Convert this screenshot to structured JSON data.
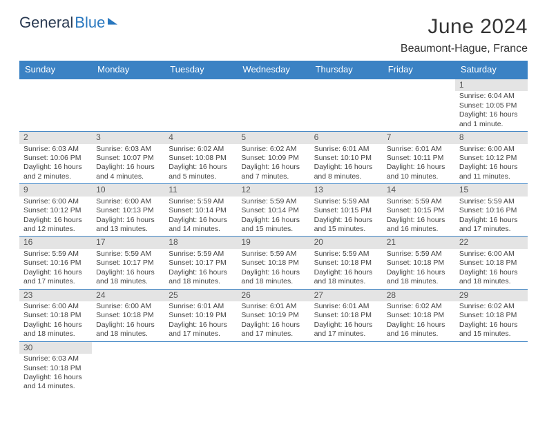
{
  "brand": {
    "general": "General",
    "blue": "Blue"
  },
  "title": "June 2024",
  "location": "Beaumont-Hague, France",
  "colors": {
    "header_bg": "#3b82c4",
    "header_text": "#ffffff",
    "daynum_bg": "#e4e4e4",
    "cell_border": "#3b82c4",
    "body_text": "#444444",
    "title_text": "#333333",
    "logo_general": "#2a3a52",
    "logo_blue": "#2a78bf"
  },
  "weekdays": [
    "Sunday",
    "Monday",
    "Tuesday",
    "Wednesday",
    "Thursday",
    "Friday",
    "Saturday"
  ],
  "weeks": [
    [
      null,
      null,
      null,
      null,
      null,
      null,
      {
        "n": "1",
        "sr": "Sunrise: 6:04 AM",
        "ss": "Sunset: 10:05 PM",
        "dl": "Daylight: 16 hours and 1 minute."
      }
    ],
    [
      {
        "n": "2",
        "sr": "Sunrise: 6:03 AM",
        "ss": "Sunset: 10:06 PM",
        "dl": "Daylight: 16 hours and 2 minutes."
      },
      {
        "n": "3",
        "sr": "Sunrise: 6:03 AM",
        "ss": "Sunset: 10:07 PM",
        "dl": "Daylight: 16 hours and 4 minutes."
      },
      {
        "n": "4",
        "sr": "Sunrise: 6:02 AM",
        "ss": "Sunset: 10:08 PM",
        "dl": "Daylight: 16 hours and 5 minutes."
      },
      {
        "n": "5",
        "sr": "Sunrise: 6:02 AM",
        "ss": "Sunset: 10:09 PM",
        "dl": "Daylight: 16 hours and 7 minutes."
      },
      {
        "n": "6",
        "sr": "Sunrise: 6:01 AM",
        "ss": "Sunset: 10:10 PM",
        "dl": "Daylight: 16 hours and 8 minutes."
      },
      {
        "n": "7",
        "sr": "Sunrise: 6:01 AM",
        "ss": "Sunset: 10:11 PM",
        "dl": "Daylight: 16 hours and 10 minutes."
      },
      {
        "n": "8",
        "sr": "Sunrise: 6:00 AM",
        "ss": "Sunset: 10:12 PM",
        "dl": "Daylight: 16 hours and 11 minutes."
      }
    ],
    [
      {
        "n": "9",
        "sr": "Sunrise: 6:00 AM",
        "ss": "Sunset: 10:12 PM",
        "dl": "Daylight: 16 hours and 12 minutes."
      },
      {
        "n": "10",
        "sr": "Sunrise: 6:00 AM",
        "ss": "Sunset: 10:13 PM",
        "dl": "Daylight: 16 hours and 13 minutes."
      },
      {
        "n": "11",
        "sr": "Sunrise: 5:59 AM",
        "ss": "Sunset: 10:14 PM",
        "dl": "Daylight: 16 hours and 14 minutes."
      },
      {
        "n": "12",
        "sr": "Sunrise: 5:59 AM",
        "ss": "Sunset: 10:14 PM",
        "dl": "Daylight: 16 hours and 15 minutes."
      },
      {
        "n": "13",
        "sr": "Sunrise: 5:59 AM",
        "ss": "Sunset: 10:15 PM",
        "dl": "Daylight: 16 hours and 15 minutes."
      },
      {
        "n": "14",
        "sr": "Sunrise: 5:59 AM",
        "ss": "Sunset: 10:15 PM",
        "dl": "Daylight: 16 hours and 16 minutes."
      },
      {
        "n": "15",
        "sr": "Sunrise: 5:59 AM",
        "ss": "Sunset: 10:16 PM",
        "dl": "Daylight: 16 hours and 17 minutes."
      }
    ],
    [
      {
        "n": "16",
        "sr": "Sunrise: 5:59 AM",
        "ss": "Sunset: 10:16 PM",
        "dl": "Daylight: 16 hours and 17 minutes."
      },
      {
        "n": "17",
        "sr": "Sunrise: 5:59 AM",
        "ss": "Sunset: 10:17 PM",
        "dl": "Daylight: 16 hours and 18 minutes."
      },
      {
        "n": "18",
        "sr": "Sunrise: 5:59 AM",
        "ss": "Sunset: 10:17 PM",
        "dl": "Daylight: 16 hours and 18 minutes."
      },
      {
        "n": "19",
        "sr": "Sunrise: 5:59 AM",
        "ss": "Sunset: 10:18 PM",
        "dl": "Daylight: 16 hours and 18 minutes."
      },
      {
        "n": "20",
        "sr": "Sunrise: 5:59 AM",
        "ss": "Sunset: 10:18 PM",
        "dl": "Daylight: 16 hours and 18 minutes."
      },
      {
        "n": "21",
        "sr": "Sunrise: 5:59 AM",
        "ss": "Sunset: 10:18 PM",
        "dl": "Daylight: 16 hours and 18 minutes."
      },
      {
        "n": "22",
        "sr": "Sunrise: 6:00 AM",
        "ss": "Sunset: 10:18 PM",
        "dl": "Daylight: 16 hours and 18 minutes."
      }
    ],
    [
      {
        "n": "23",
        "sr": "Sunrise: 6:00 AM",
        "ss": "Sunset: 10:18 PM",
        "dl": "Daylight: 16 hours and 18 minutes."
      },
      {
        "n": "24",
        "sr": "Sunrise: 6:00 AM",
        "ss": "Sunset: 10:18 PM",
        "dl": "Daylight: 16 hours and 18 minutes."
      },
      {
        "n": "25",
        "sr": "Sunrise: 6:01 AM",
        "ss": "Sunset: 10:19 PM",
        "dl": "Daylight: 16 hours and 17 minutes."
      },
      {
        "n": "26",
        "sr": "Sunrise: 6:01 AM",
        "ss": "Sunset: 10:19 PM",
        "dl": "Daylight: 16 hours and 17 minutes."
      },
      {
        "n": "27",
        "sr": "Sunrise: 6:01 AM",
        "ss": "Sunset: 10:18 PM",
        "dl": "Daylight: 16 hours and 17 minutes."
      },
      {
        "n": "28",
        "sr": "Sunrise: 6:02 AM",
        "ss": "Sunset: 10:18 PM",
        "dl": "Daylight: 16 hours and 16 minutes."
      },
      {
        "n": "29",
        "sr": "Sunrise: 6:02 AM",
        "ss": "Sunset: 10:18 PM",
        "dl": "Daylight: 16 hours and 15 minutes."
      }
    ],
    [
      {
        "n": "30",
        "sr": "Sunrise: 6:03 AM",
        "ss": "Sunset: 10:18 PM",
        "dl": "Daylight: 16 hours and 14 minutes."
      },
      null,
      null,
      null,
      null,
      null,
      null
    ]
  ]
}
